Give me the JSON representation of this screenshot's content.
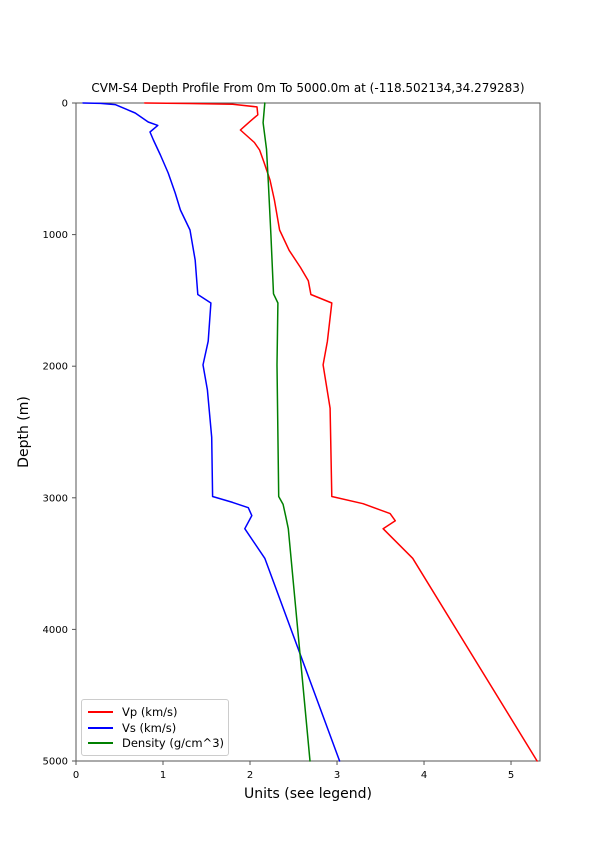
{
  "figure": {
    "title": "CVM-S4 Depth Profile From 0m To 5000.0m at (-118.502134,34.279283)",
    "xlabel": "Units (see legend)",
    "ylabel": "Depth (m)"
  },
  "chart_data": {
    "type": "line",
    "title": "CVM-S4 Depth Profile From 0m To 5000.0m at (-118.502134,34.279283)",
    "xlabel": "Units (see legend)",
    "ylabel": "Depth (m)",
    "xlim": [
      0,
      5.333
    ],
    "ylim": [
      5000,
      0
    ],
    "y_axis_inverted": true,
    "grid": false,
    "legend_position": "lower left",
    "x_ticks": [
      0,
      1,
      2,
      3,
      4,
      5
    ],
    "y_ticks": [
      0,
      1000,
      2000,
      3000,
      4000,
      5000
    ],
    "axis_color": "#555555",
    "series": [
      {
        "name": "Vp (km/s)",
        "color": "#ff0000",
        "points_value_depth": [
          [
            0.79,
            0
          ],
          [
            1.3,
            4
          ],
          [
            1.8,
            10
          ],
          [
            2.08,
            30
          ],
          [
            2.09,
            90
          ],
          [
            2.0,
            140
          ],
          [
            1.89,
            205
          ],
          [
            2.05,
            300
          ],
          [
            2.11,
            357
          ],
          [
            2.16,
            448
          ],
          [
            2.23,
            585
          ],
          [
            2.28,
            737
          ],
          [
            2.34,
            965
          ],
          [
            2.45,
            1120
          ],
          [
            2.58,
            1250
          ],
          [
            2.67,
            1350
          ],
          [
            2.7,
            1455
          ],
          [
            2.94,
            1520
          ],
          [
            2.89,
            1810
          ],
          [
            2.84,
            1990
          ],
          [
            2.92,
            2320
          ],
          [
            2.94,
            2990
          ],
          [
            3.3,
            3045
          ],
          [
            3.61,
            3120
          ],
          [
            3.67,
            3175
          ],
          [
            3.53,
            3235
          ],
          [
            3.87,
            3460
          ],
          [
            5.3,
            5000
          ]
        ]
      },
      {
        "name": "Vs (km/s)",
        "color": "#0000ff",
        "points_value_depth": [
          [
            0.08,
            0
          ],
          [
            0.28,
            3
          ],
          [
            0.45,
            12
          ],
          [
            0.68,
            76
          ],
          [
            0.83,
            144
          ],
          [
            0.94,
            170
          ],
          [
            0.85,
            220
          ],
          [
            0.89,
            281
          ],
          [
            0.97,
            395
          ],
          [
            1.06,
            532
          ],
          [
            1.14,
            684
          ],
          [
            1.2,
            813
          ],
          [
            1.31,
            965
          ],
          [
            1.37,
            1195
          ],
          [
            1.4,
            1455
          ],
          [
            1.55,
            1520
          ],
          [
            1.52,
            1810
          ],
          [
            1.46,
            1990
          ],
          [
            1.51,
            2180
          ],
          [
            1.56,
            2540
          ],
          [
            1.57,
            2990
          ],
          [
            1.8,
            3035
          ],
          [
            1.98,
            3075
          ],
          [
            2.02,
            3135
          ],
          [
            1.94,
            3235
          ],
          [
            2.17,
            3460
          ],
          [
            3.03,
            5000
          ]
        ]
      },
      {
        "name": "Density (g/cm^3)",
        "color": "#008000",
        "points_value_depth": [
          [
            2.17,
            0
          ],
          [
            2.15,
            150
          ],
          [
            2.19,
            350
          ],
          [
            2.21,
            600
          ],
          [
            2.24,
            1000
          ],
          [
            2.27,
            1450
          ],
          [
            2.32,
            1520
          ],
          [
            2.31,
            1990
          ],
          [
            2.33,
            2990
          ],
          [
            2.38,
            3050
          ],
          [
            2.41,
            3140
          ],
          [
            2.44,
            3235
          ],
          [
            2.69,
            5000
          ]
        ]
      }
    ]
  }
}
